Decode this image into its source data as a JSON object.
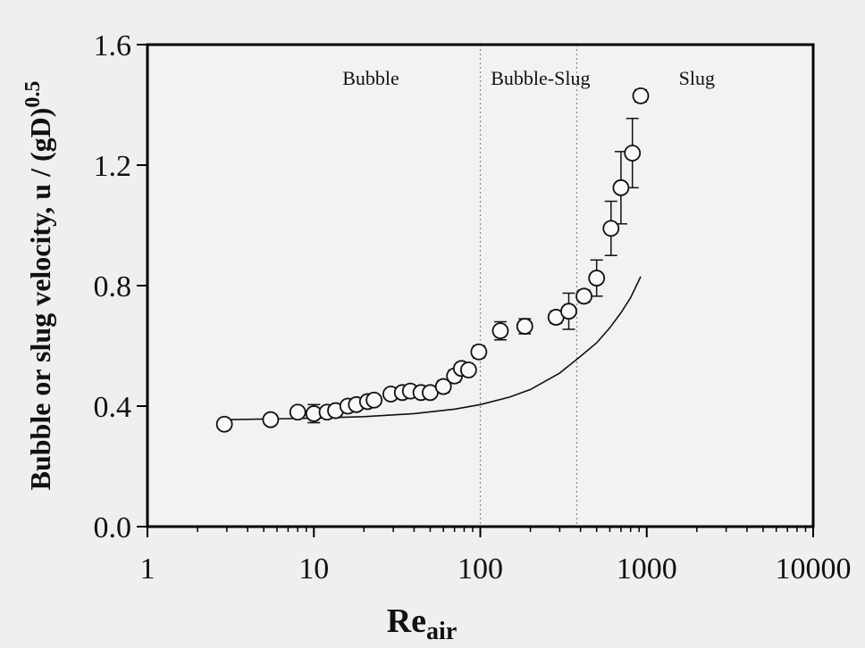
{
  "chart_data": {
    "type": "scatter",
    "xscale": "log",
    "xlim": [
      1,
      10000
    ],
    "ylim": [
      0.0,
      1.6
    ],
    "x_ticks": [
      {
        "value": 1,
        "label": "1"
      },
      {
        "value": 10,
        "label": "10"
      },
      {
        "value": 100,
        "label": "100"
      },
      {
        "value": 1000,
        "label": "1000"
      },
      {
        "value": 10000,
        "label": "10000"
      }
    ],
    "y_ticks": [
      {
        "value": 0.0,
        "label": "0.0"
      },
      {
        "value": 0.4,
        "label": "0.4"
      },
      {
        "value": 0.8,
        "label": "0.8"
      },
      {
        "value": 1.2,
        "label": "1.2"
      },
      {
        "value": 1.6,
        "label": "1.6"
      }
    ],
    "xlabel": "Re",
    "xlabel_sub": "air",
    "ylabel": "Bubble or slug velocity, u / (gD)",
    "ylabel_sup": "0.5",
    "regions": [
      {
        "label": "Bubble",
        "x_label": 22
      },
      {
        "label": "Bubble-Slug",
        "x_label": 230
      },
      {
        "label": "Slug",
        "x_label": 2000
      }
    ],
    "region_boundaries": [
      100,
      380
    ],
    "series": [
      {
        "kind": "points",
        "marker": "open-circle",
        "points": [
          {
            "x": 2.9,
            "y": 0.34
          },
          {
            "x": 5.5,
            "y": 0.355
          },
          {
            "x": 8,
            "y": 0.38
          },
          {
            "x": 10,
            "y": 0.375,
            "err": 0.03
          },
          {
            "x": 12,
            "y": 0.38
          },
          {
            "x": 13.5,
            "y": 0.385
          },
          {
            "x": 16,
            "y": 0.4
          },
          {
            "x": 18,
            "y": 0.405
          },
          {
            "x": 21,
            "y": 0.415
          },
          {
            "x": 23,
            "y": 0.42
          },
          {
            "x": 29,
            "y": 0.44
          },
          {
            "x": 34,
            "y": 0.445
          },
          {
            "x": 38,
            "y": 0.45
          },
          {
            "x": 44,
            "y": 0.445
          },
          {
            "x": 50,
            "y": 0.445
          },
          {
            "x": 60,
            "y": 0.465,
            "err": 0.02
          },
          {
            "x": 70,
            "y": 0.5,
            "err": 0.02
          },
          {
            "x": 77,
            "y": 0.525
          },
          {
            "x": 85,
            "y": 0.52
          },
          {
            "x": 98,
            "y": 0.58,
            "err": 0.02
          },
          {
            "x": 132,
            "y": 0.65,
            "err": 0.03
          },
          {
            "x": 185,
            "y": 0.665,
            "err": 0.025
          },
          {
            "x": 285,
            "y": 0.695,
            "err": 0.02
          },
          {
            "x": 340,
            "y": 0.715,
            "err": 0.06
          },
          {
            "x": 420,
            "y": 0.765,
            "err": 0.02
          },
          {
            "x": 500,
            "y": 0.825,
            "err": 0.06
          },
          {
            "x": 610,
            "y": 0.99,
            "err": 0.09
          },
          {
            "x": 700,
            "y": 1.125,
            "err": 0.12
          },
          {
            "x": 820,
            "y": 1.24,
            "err": 0.115
          },
          {
            "x": 920,
            "y": 1.43,
            "err": 0.02
          }
        ]
      },
      {
        "kind": "line",
        "points": [
          {
            "x": 3,
            "y": 0.355
          },
          {
            "x": 10,
            "y": 0.36
          },
          {
            "x": 20,
            "y": 0.365
          },
          {
            "x": 40,
            "y": 0.375
          },
          {
            "x": 70,
            "y": 0.39
          },
          {
            "x": 100,
            "y": 0.405
          },
          {
            "x": 150,
            "y": 0.43
          },
          {
            "x": 200,
            "y": 0.455
          },
          {
            "x": 300,
            "y": 0.51
          },
          {
            "x": 400,
            "y": 0.565
          },
          {
            "x": 500,
            "y": 0.61
          },
          {
            "x": 600,
            "y": 0.66
          },
          {
            "x": 700,
            "y": 0.71
          },
          {
            "x": 800,
            "y": 0.76
          },
          {
            "x": 920,
            "y": 0.83
          }
        ]
      }
    ]
  }
}
